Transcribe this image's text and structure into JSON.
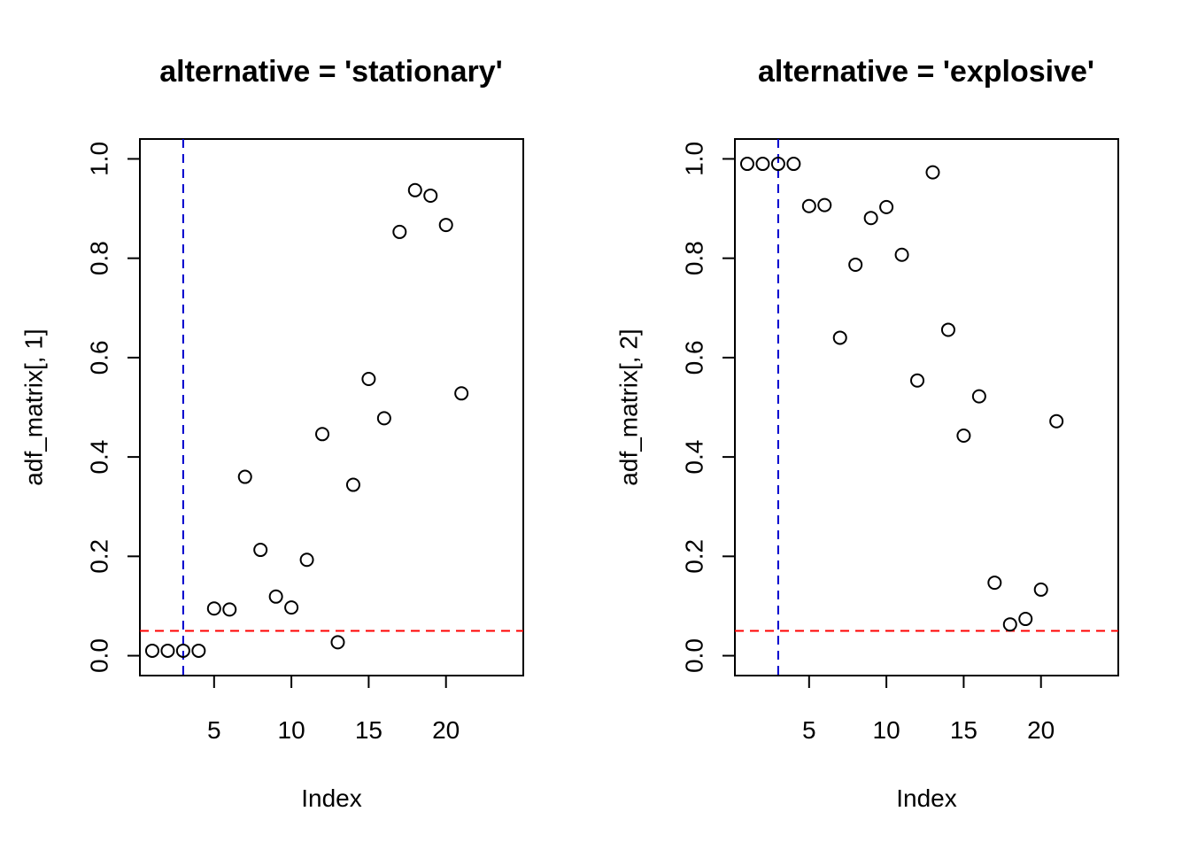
{
  "chart_data": [
    {
      "type": "scatter",
      "title": "alternative = 'stationary'",
      "xlabel": "Index",
      "ylabel": "adf_matrix[, 1]",
      "xlim": [
        0.2,
        25.0
      ],
      "ylim": [
        -0.04,
        1.04
      ],
      "xticks": [
        5,
        10,
        15,
        20
      ],
      "xtick_labels": [
        "5",
        "10",
        "15",
        "20"
      ],
      "yticks": [
        0.0,
        0.2,
        0.4,
        0.6,
        0.8,
        1.0
      ],
      "ytick_labels": [
        "0.0",
        "0.2",
        "0.4",
        "0.6",
        "0.8",
        "1.0"
      ],
      "grid": false,
      "x": [
        1,
        2,
        3,
        4,
        5,
        6,
        7,
        8,
        9,
        10,
        11,
        12,
        13,
        14,
        15,
        16,
        17,
        18,
        19,
        20,
        21
      ],
      "y": [
        0.01,
        0.01,
        0.01,
        0.01,
        0.095,
        0.093,
        0.36,
        0.213,
        0.119,
        0.097,
        0.193,
        0.446,
        0.027,
        0.344,
        0.557,
        0.478,
        0.853,
        0.937,
        0.926,
        0.867,
        0.528
      ],
      "hline": {
        "y": 0.05,
        "color": "#ff0000"
      },
      "vline": {
        "x": 3,
        "color": "#0000cc"
      }
    },
    {
      "type": "scatter",
      "title": "alternative = 'explosive'",
      "xlabel": "Index",
      "ylabel": "adf_matrix[, 2]",
      "xlim": [
        0.2,
        25.0
      ],
      "ylim": [
        -0.04,
        1.04
      ],
      "xticks": [
        5,
        10,
        15,
        20
      ],
      "xtick_labels": [
        "5",
        "10",
        "15",
        "20"
      ],
      "yticks": [
        0.0,
        0.2,
        0.4,
        0.6,
        0.8,
        1.0
      ],
      "ytick_labels": [
        "0.0",
        "0.2",
        "0.4",
        "0.6",
        "0.8",
        "1.0"
      ],
      "grid": false,
      "x": [
        1,
        2,
        3,
        4,
        5,
        6,
        7,
        8,
        9,
        10,
        11,
        12,
        13,
        14,
        15,
        16,
        17,
        18,
        19,
        20,
        21
      ],
      "y": [
        0.99,
        0.99,
        0.99,
        0.99,
        0.905,
        0.907,
        0.64,
        0.787,
        0.881,
        0.903,
        0.807,
        0.554,
        0.973,
        0.656,
        0.443,
        0.522,
        0.147,
        0.063,
        0.074,
        0.133,
        0.472
      ],
      "hline": {
        "y": 0.05,
        "color": "#ff0000"
      },
      "vline": {
        "x": 3,
        "color": "#0000cc"
      }
    }
  ]
}
